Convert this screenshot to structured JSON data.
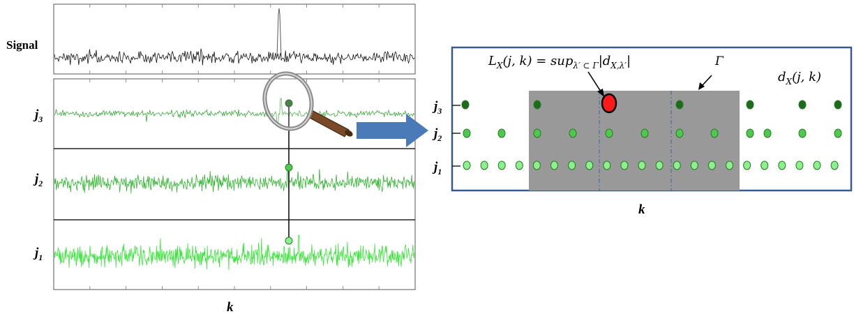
{
  "left_panel": {
    "signal_label": "Signal",
    "band_labels": [
      {
        "main": "j",
        "sub": "3"
      },
      {
        "main": "j",
        "sub": "2"
      },
      {
        "main": "j",
        "sub": "1"
      }
    ],
    "x_label": "k"
  },
  "right_panel": {
    "row_labels": [
      {
        "main": "j",
        "sub": "3"
      },
      {
        "main": "j",
        "sub": "2"
      },
      {
        "main": "j",
        "sub": "1"
      }
    ],
    "x_label": "k",
    "leader_lhs": "L",
    "leader_lhs_sub": "X",
    "leader_args": "(j, k) = sup",
    "leader_sup_sub": "λ′ ⊂ Γ",
    "leader_abs_open": "|d",
    "leader_abs_sub": "X,λ′",
    "leader_abs_close": "|",
    "gamma_label": "Γ",
    "coef_label": "d",
    "coef_label_sub": "X",
    "coef_label_args": "(j, k)"
  },
  "colors": {
    "signal": "#111111",
    "band_j3": "#3aa83a",
    "band_j2": "#2fb52f",
    "band_j1": "#39e639",
    "node_j3": "#1e6b1e",
    "node_j2": "#4ec94e",
    "node_j1": "#8df08d",
    "node_stroke": "#2a7a2a",
    "max_node": "#ff1a1a",
    "shade": "#999999",
    "box_border": "#3c5a8c",
    "arrow": "#4a7ab8",
    "handle": "#7a4a28"
  }
}
